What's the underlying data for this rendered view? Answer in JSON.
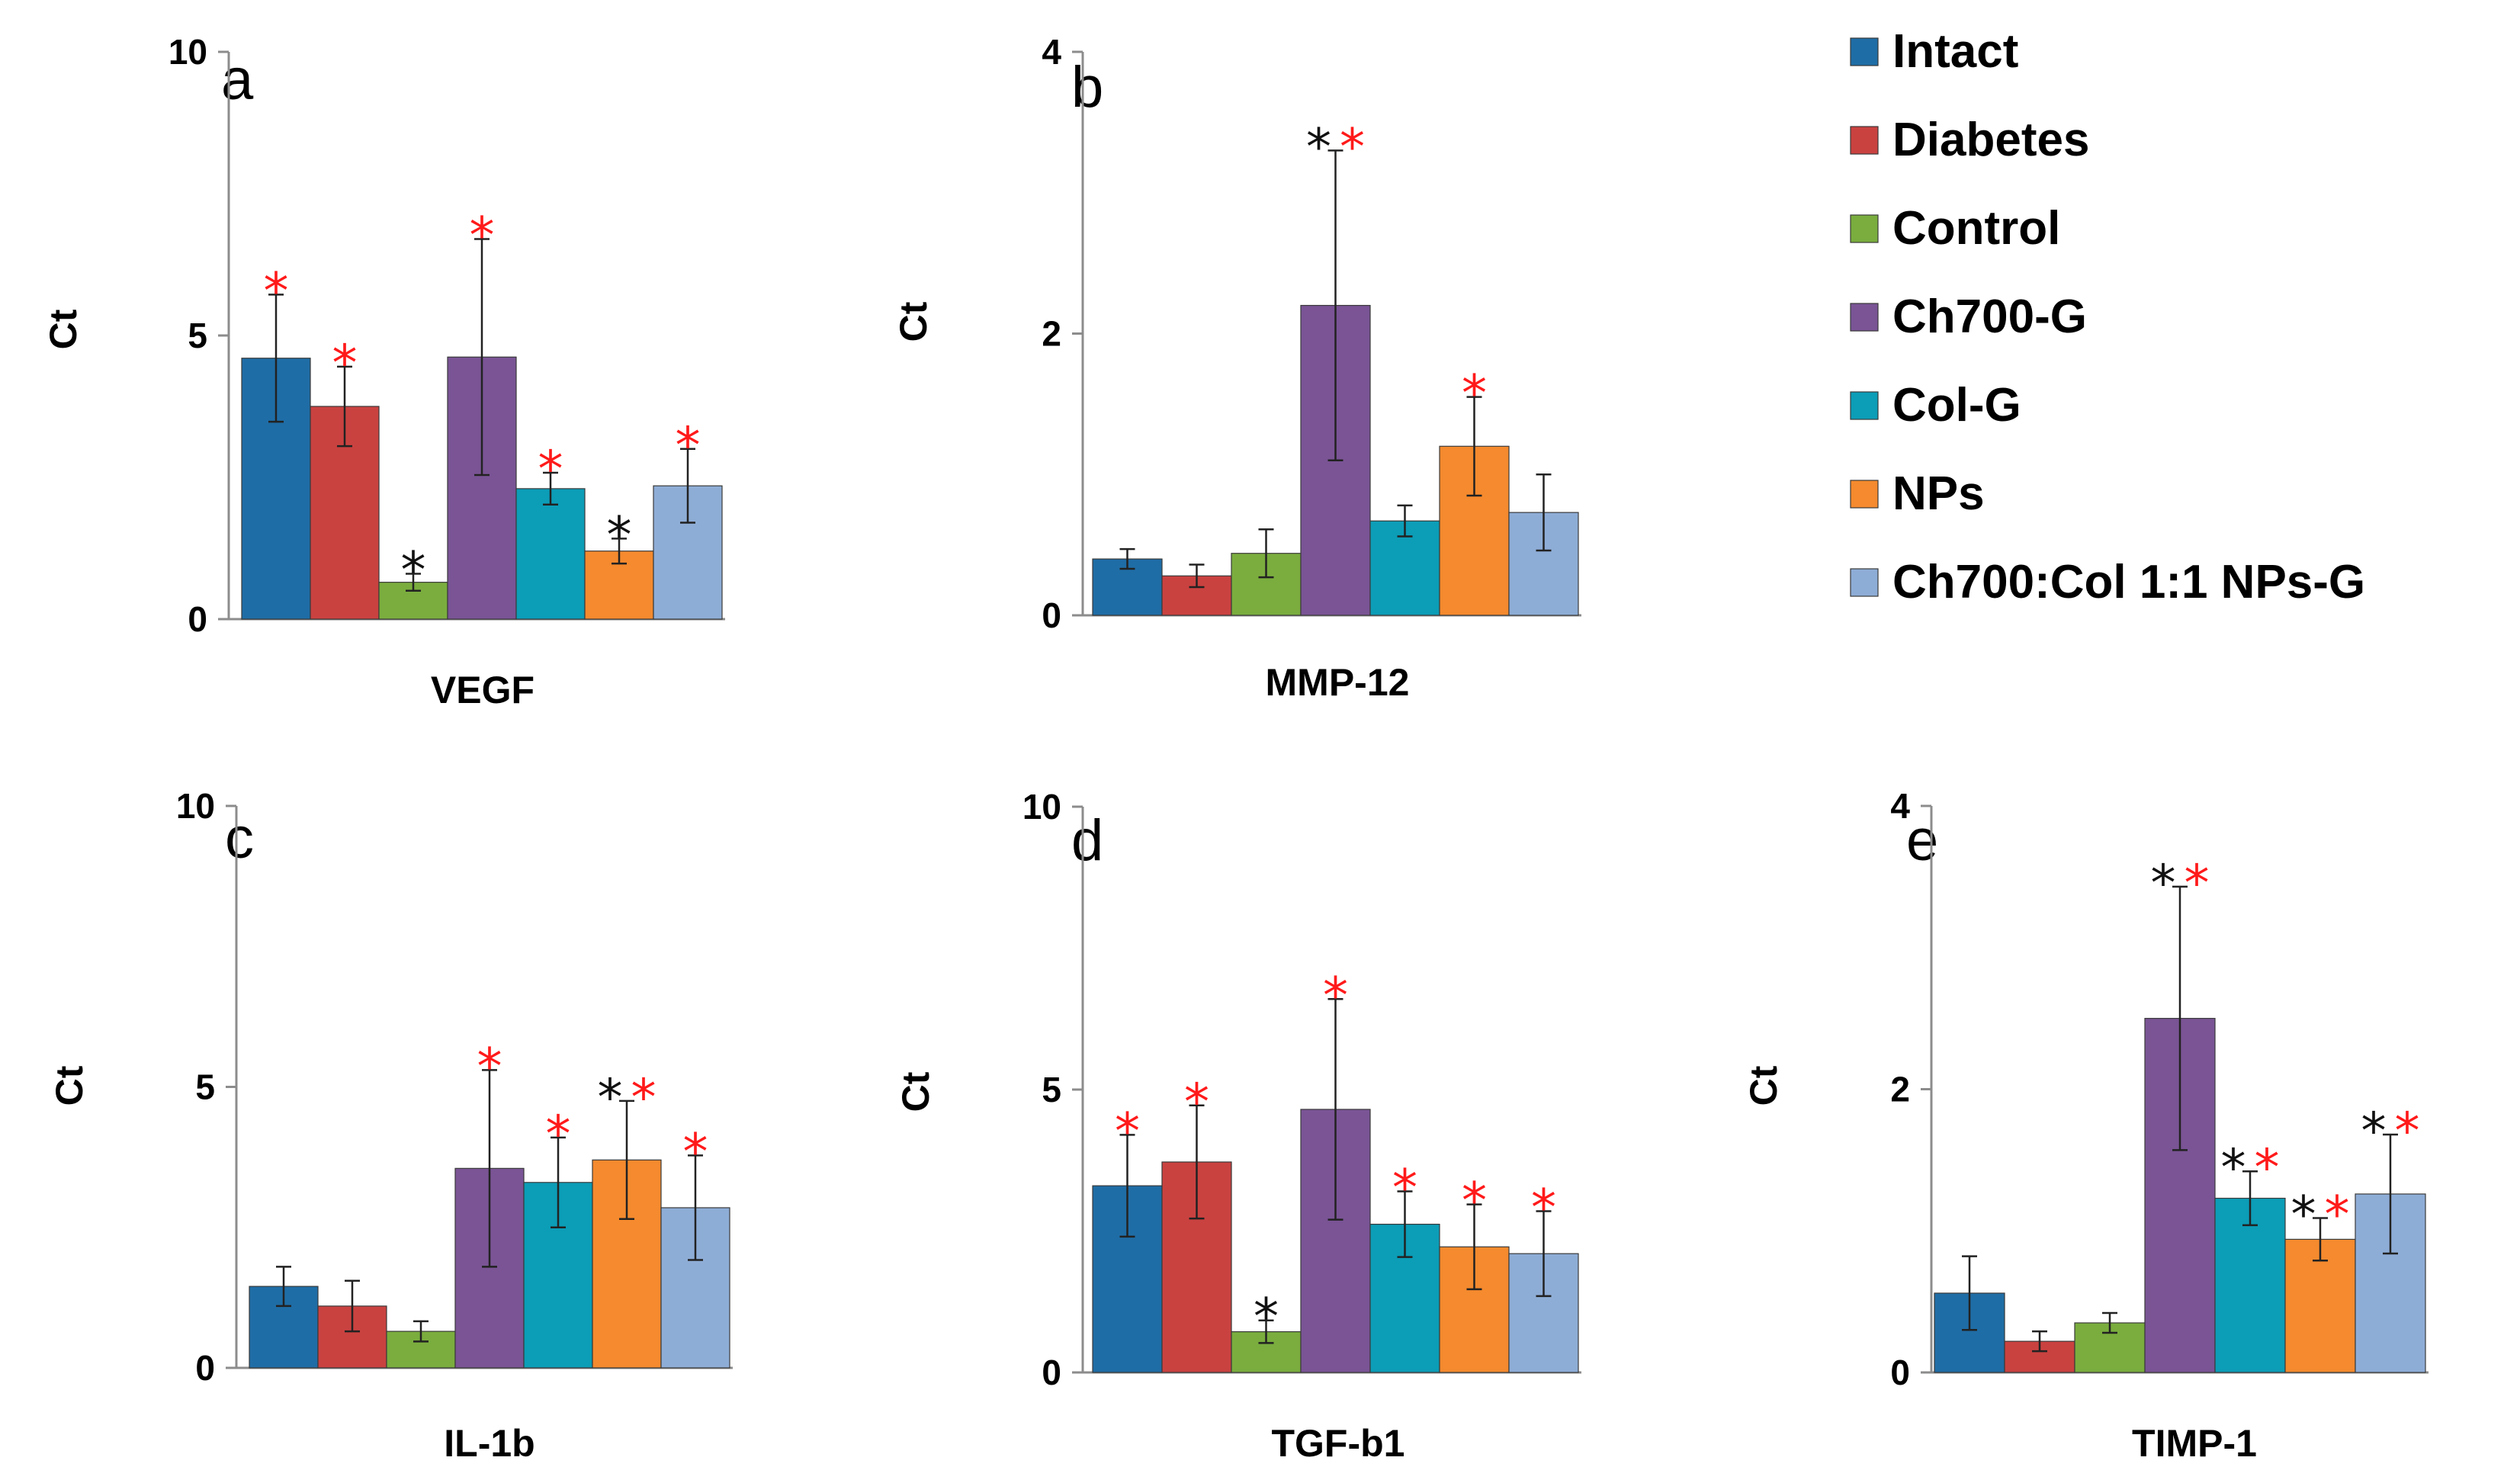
{
  "colors": {
    "series": [
      "#1F6DA6",
      "#C94240",
      "#7AAD3E",
      "#7A5495",
      "#0C9DB7",
      "#F58A2E",
      "#8EADD6"
    ],
    "star_black": "#111111",
    "star_red": "#FF1A1A"
  },
  "legend": {
    "items": [
      "Intact",
      "Diabetes",
      "Control",
      "Ch700-G",
      "Col-G",
      "NPs",
      "Ch700:Col 1:1 NPs-G"
    ]
  },
  "chart_data": [
    {
      "type": "bar",
      "panel": "a",
      "xlabel": "VEGF",
      "ylabel": "Ct",
      "ylim": [
        0,
        10
      ],
      "yticks": [
        "0",
        "5",
        "10"
      ],
      "yticks_values": [
        0,
        5,
        10
      ],
      "categories": [
        "Intact",
        "Diabetes",
        "Control",
        "Ch700-G",
        "Col-G",
        "NPs",
        "Ch700:Col 1:1 NPs-G"
      ],
      "values": [
        4.6,
        3.75,
        0.65,
        4.62,
        2.3,
        1.2,
        2.35
      ],
      "errors": [
        1.12,
        0.7,
        0.15,
        2.08,
        0.28,
        0.22,
        0.65
      ],
      "annotations": [
        [
          {
            "t": "*",
            "c": "red"
          }
        ],
        [
          {
            "t": "*",
            "c": "red"
          }
        ],
        [
          {
            "t": "*",
            "c": "black"
          }
        ],
        [
          {
            "t": "*",
            "c": "red"
          }
        ],
        [
          {
            "t": "*",
            "c": "red"
          }
        ],
        [
          {
            "t": "*",
            "c": "black"
          }
        ],
        [
          {
            "t": "*",
            "c": "red"
          }
        ]
      ]
    },
    {
      "type": "bar",
      "panel": "b",
      "xlabel": "MMP-12",
      "ylabel": "Ct",
      "ylim": [
        0,
        4
      ],
      "yticks": [
        "0",
        "2",
        "4"
      ],
      "yticks_values": [
        0,
        2,
        4
      ],
      "categories": [
        "Intact",
        "Diabetes",
        "Control",
        "Ch700-G",
        "Col-G",
        "NPs",
        "Ch700:Col 1:1 NPs-G"
      ],
      "values": [
        0.4,
        0.28,
        0.44,
        2.2,
        0.67,
        1.2,
        0.73
      ],
      "errors": [
        0.07,
        0.08,
        0.17,
        1.1,
        0.11,
        0.35,
        0.27
      ],
      "annotations": [
        [],
        [],
        [],
        [
          {
            "t": "*",
            "c": "black"
          },
          {
            "t": "*",
            "c": "red"
          }
        ],
        [],
        [
          {
            "t": "*",
            "c": "red"
          }
        ],
        []
      ]
    },
    {
      "type": "bar",
      "panel": "c",
      "xlabel": "IL-1b",
      "ylabel": "Ct",
      "ylim": [
        0,
        10
      ],
      "yticks": [
        "0",
        "5",
        "10"
      ],
      "yticks_values": [
        0,
        5,
        10
      ],
      "categories": [
        "Intact",
        "Diabetes",
        "Control",
        "Ch700-G",
        "Col-G",
        "NPs",
        "Ch700:Col 1:1 NPs-G"
      ],
      "values": [
        1.45,
        1.1,
        0.65,
        3.55,
        3.3,
        3.7,
        2.85
      ],
      "errors": [
        0.35,
        0.45,
        0.18,
        1.75,
        0.8,
        1.05,
        0.93
      ],
      "annotations": [
        [],
        [],
        [],
        [
          {
            "t": "*",
            "c": "red"
          }
        ],
        [
          {
            "t": "*",
            "c": "red"
          }
        ],
        [
          {
            "t": "*",
            "c": "black"
          },
          {
            "t": "*",
            "c": "red"
          }
        ],
        [
          {
            "t": "*",
            "c": "red"
          }
        ]
      ]
    },
    {
      "type": "bar",
      "panel": "d",
      "xlabel": "TGF-b1",
      "ylabel": "Ct",
      "ylim": [
        0,
        10
      ],
      "yticks": [
        "0",
        "5",
        "10"
      ],
      "yticks_values": [
        0,
        5,
        10
      ],
      "categories": [
        "Intact",
        "Diabetes",
        "Control",
        "Ch700-G",
        "Col-G",
        "NPs",
        "Ch700:Col 1:1 NPs-G"
      ],
      "values": [
        3.3,
        3.72,
        0.72,
        4.65,
        2.62,
        2.22,
        2.1
      ],
      "errors": [
        0.9,
        1.0,
        0.2,
        1.95,
        0.58,
        0.75,
        0.75
      ],
      "annotations": [
        [
          {
            "t": "*",
            "c": "red"
          }
        ],
        [
          {
            "t": "*",
            "c": "red"
          }
        ],
        [
          {
            "t": "*",
            "c": "black"
          }
        ],
        [
          {
            "t": "*",
            "c": "red"
          }
        ],
        [
          {
            "t": "*",
            "c": "red"
          }
        ],
        [
          {
            "t": "*",
            "c": "red"
          }
        ],
        [
          {
            "t": "*",
            "c": "red"
          }
        ]
      ]
    },
    {
      "type": "bar",
      "panel": "e",
      "xlabel": "TIMP-1",
      "ylabel": "Ct",
      "ylim": [
        0,
        4
      ],
      "yticks": [
        "0",
        "2",
        "4"
      ],
      "yticks_values": [
        0,
        2,
        4
      ],
      "categories": [
        "Intact",
        "Diabetes",
        "Control",
        "Ch700-G",
        "Col-G",
        "NPs",
        "Ch700:Col 1:1 NPs-G"
      ],
      "values": [
        0.56,
        0.22,
        0.35,
        2.5,
        1.23,
        0.94,
        1.26
      ],
      "errors": [
        0.26,
        0.07,
        0.07,
        0.93,
        0.19,
        0.15,
        0.42
      ],
      "annotations": [
        [],
        [],
        [],
        [
          {
            "t": "*",
            "c": "black"
          },
          {
            "t": "*",
            "c": "red"
          }
        ],
        [
          {
            "t": "*",
            "c": "black"
          },
          {
            "t": "*",
            "c": "red"
          }
        ],
        [
          {
            "t": "*",
            "c": "black"
          },
          {
            "t": "*",
            "c": "red"
          }
        ],
        [
          {
            "t": "*",
            "c": "black"
          },
          {
            "t": "*",
            "c": "red"
          }
        ]
      ]
    }
  ]
}
